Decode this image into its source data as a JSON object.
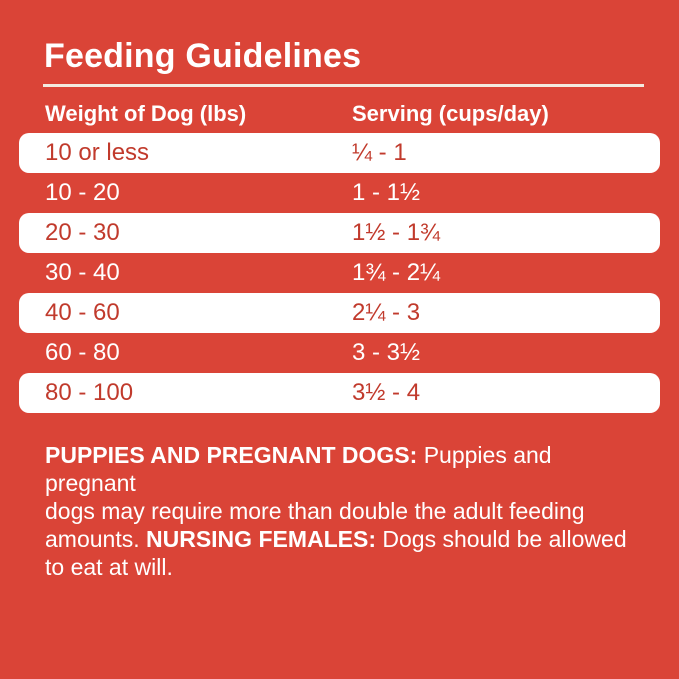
{
  "page": {
    "title": "Feeding Guidelines",
    "background_color": "#DA4437",
    "row_highlight_color": "#FFFFFF",
    "accent_text_color": "#C13A2C",
    "primary_text_color": "#FFFFFF"
  },
  "table": {
    "columns": [
      "Weight of Dog (lbs)",
      "Serving (cups/day)"
    ],
    "rows": [
      {
        "weight": "10 or less",
        "serving": "¼ - 1"
      },
      {
        "weight": "10 - 20",
        "serving": "1 - 1½"
      },
      {
        "weight": "20 - 30",
        "serving": "1½ - 1¾"
      },
      {
        "weight": "30 - 40",
        "serving": "1¾ - 2¼"
      },
      {
        "weight": "40 - 60",
        "serving": "2¼ - 3"
      },
      {
        "weight": "60 - 80",
        "serving": "3 - 3½"
      },
      {
        "weight": "80 - 100",
        "serving": "3½ - 4"
      }
    ]
  },
  "footnote": {
    "line1_bold": "PUPPIES AND PREGNANT DOGS:",
    "line1_text": " Puppies and pregnant",
    "line2_text": "dogs may require more than double the adult feeding",
    "line3_pre": "amounts. ",
    "line3_bold": "NURSING FEMALES:",
    "line3_post": " Dogs should be allowed",
    "line4_text": "to eat at will."
  }
}
